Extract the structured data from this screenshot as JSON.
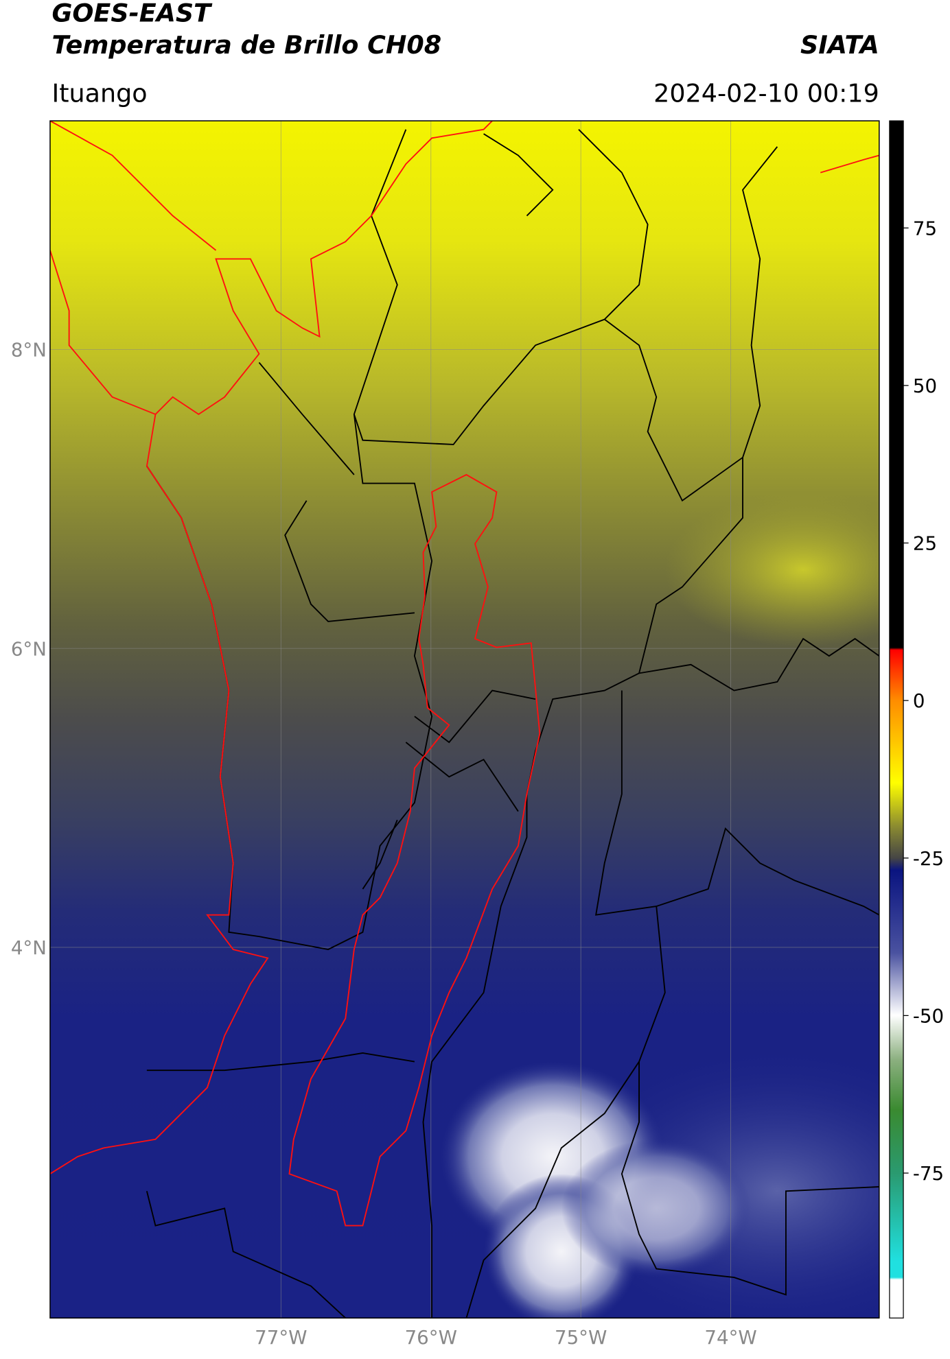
{
  "header": {
    "title": "GOES-EAST",
    "subtitle": "Temperatura de Brillo CH08",
    "source": "SIATA",
    "location": "Ituango",
    "timestamp": "2024-02-10 00:19"
  },
  "map": {
    "lon_range": [
      -78.54,
      -73.01
    ],
    "lat_range": [
      1.52,
      9.53
    ],
    "lat_ticks": [
      {
        "value": 8,
        "label": "8°N"
      },
      {
        "value": 6,
        "label": "6°N"
      },
      {
        "value": 4,
        "label": "4°N"
      }
    ],
    "lon_ticks": [
      {
        "value": -77,
        "label": "77°W"
      },
      {
        "value": -76,
        "label": "76°W"
      },
      {
        "value": -75,
        "label": "75°W"
      },
      {
        "value": -74,
        "label": "74°W"
      }
    ],
    "grid": true
  },
  "colorbar": {
    "clim": [
      -98,
      92
    ],
    "ticks": [
      75,
      50,
      25,
      0,
      -25,
      -50,
      -75
    ]
  }
}
